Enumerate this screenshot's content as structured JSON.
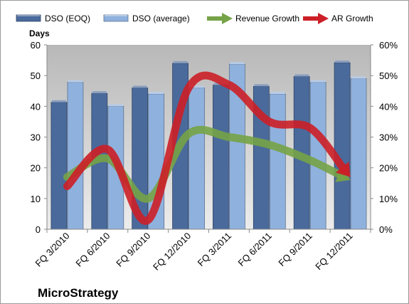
{
  "chart_data": {
    "type": "bar",
    "company": "MicroStrategy",
    "ylabel": "Days",
    "ylim": [
      0,
      60
    ],
    "y_ticks": [
      "0",
      "10",
      "20",
      "30",
      "40",
      "50",
      "60"
    ],
    "y2lim": [
      0,
      60
    ],
    "y2_ticks": [
      "0%",
      "10%",
      "20%",
      "30%",
      "40%",
      "50%",
      "60%"
    ],
    "categories": [
      "FQ 3/2010",
      "FQ 6/2010",
      "FQ 9/2010",
      "FQ 12/2010",
      "FQ 3/2011",
      "FQ 6/2011",
      "FQ 9/2011",
      "FQ 12/2011"
    ],
    "series": [
      {
        "name": "DSO (EOQ)",
        "kind": "bar",
        "axis": "left",
        "color": "#4a6a9c",
        "values": [
          41.3,
          44.2,
          46.0,
          54.0,
          46.9,
          46.5,
          49.7,
          54.2
        ]
      },
      {
        "name": "DSO (average)",
        "kind": "bar",
        "axis": "left",
        "color": "#8fb1dd",
        "values": [
          47.8,
          40.0,
          44.0,
          46.0,
          53.7,
          44.0,
          47.8,
          49.0
        ]
      },
      {
        "name": "Revenue Growth",
        "kind": "line",
        "axis": "right",
        "color": "#76a347",
        "values": [
          17,
          23,
          10,
          31,
          30,
          27.5,
          22.5,
          16
        ]
      },
      {
        "name": "AR Growth",
        "kind": "line",
        "axis": "right",
        "color": "#cc1f27",
        "values": [
          14,
          26,
          3,
          46,
          47,
          35,
          33,
          17
        ]
      }
    ],
    "legend_position": "top",
    "grid": false
  }
}
